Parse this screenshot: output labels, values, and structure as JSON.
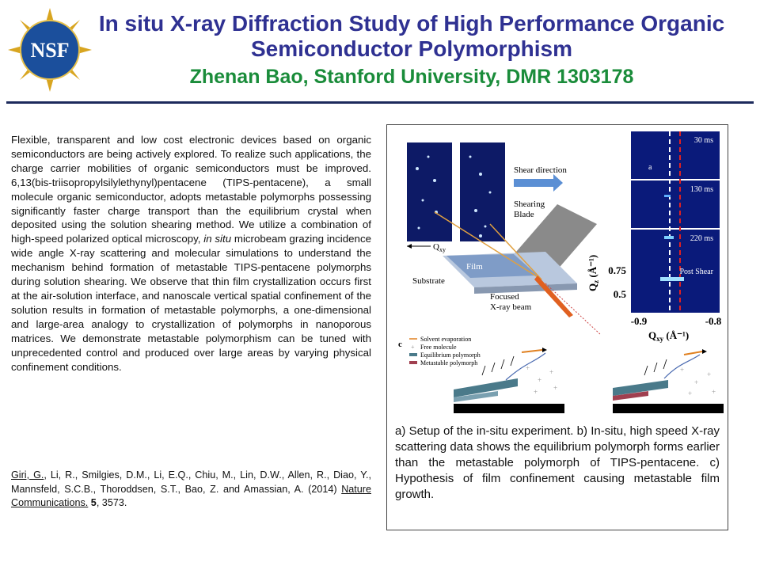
{
  "header": {
    "logo_text": "NSF",
    "title": "In situ X-ray Diffraction Study of High Performance Organic Semiconductor Polymorphism",
    "subtitle": "Zhenan Bao, Stanford University, DMR 1303178"
  },
  "body": {
    "p1": "Flexible, transparent and low cost electronic devices based on organic semiconductors are being actively explored. To realize such applications, the charge carrier mobilities of organic semiconductors must be improved. 6,13(bis-triisopropylsilylethynyl)pentacene (TIPS-pentacene), a small molecule organic semiconductor, adopts metastable polymorphs possessing significantly faster charge transport than the equilibrium crystal when deposited using the solution shearing method. We utilize a combination of high-speed polarized optical microscopy, ",
    "p1_italic": "in situ",
    "p2": " microbeam grazing incidence wide angle X-ray scattering and molecular simulations to understand the mechanism behind formation of metastable TIPS-pentacene polymorphs during solution shearing. We observe that thin film crystallization occurs first at the air-solution interface, and nanoscale vertical spatial confinement of the solution results in formation of metastable polymorphs, a one-dimensional and large-area analogy to crystallization of polymorphs in nanoporous matrices. We demonstrate metastable polymorphism can be tuned with unprecedented control and produced over large areas by varying physical confinement conditions."
  },
  "reference": {
    "first_author": "Giri, G.",
    "authors_rest": ", Li, R., Smilgies, D.M., Li, E.Q., Chiu, M., Lin, D.W., Allen, R., Diao, Y., Mannsfeld, S.C.B., Thoroddsen, S.T., Bao, Z. and Amassian, A. (2014) ",
    "journal": "Nature Communications.",
    "volume": "5",
    "pages": ", 3573."
  },
  "figure": {
    "panel_a": {
      "shear_direction": "Shear direction",
      "shearing_blade_line1": "Shearing",
      "shearing_blade_line2": "Blade",
      "qxy": "Q",
      "qxy_sub": "xy",
      "film": "Film",
      "substrate": "Substrate",
      "beam_line1": "Focused",
      "beam_line2": "X-ray beam"
    },
    "panel_b": {
      "label": "a",
      "frames": [
        "30 ms",
        "130 ms",
        "220 ms",
        "Post Shear"
      ],
      "qz_label": "Q",
      "qz_sub": "z",
      "qz_unit": " (Å⁻¹)",
      "qz_ticks": [
        "0.75",
        "0.5"
      ],
      "qxy_ticks": [
        "-0.9",
        "-0.8"
      ],
      "qxy_label": "Q",
      "qxy_sub": "xy",
      "qxy_unit": " (Å⁻¹)"
    },
    "panel_c": {
      "label": "c",
      "legend": [
        "Solvent evaporation",
        "Free molecule",
        "Equilibrium polymorph",
        "Metastable polymorph"
      ]
    },
    "caption": "a) Setup of the in-situ experiment. b) In-situ, high speed X-ray scattering data shows the equilibrium polymorph forms earlier than the metastable polymorph of TIPS-pentacene. c) Hypothesis of film confinement causing metastable film growth."
  }
}
